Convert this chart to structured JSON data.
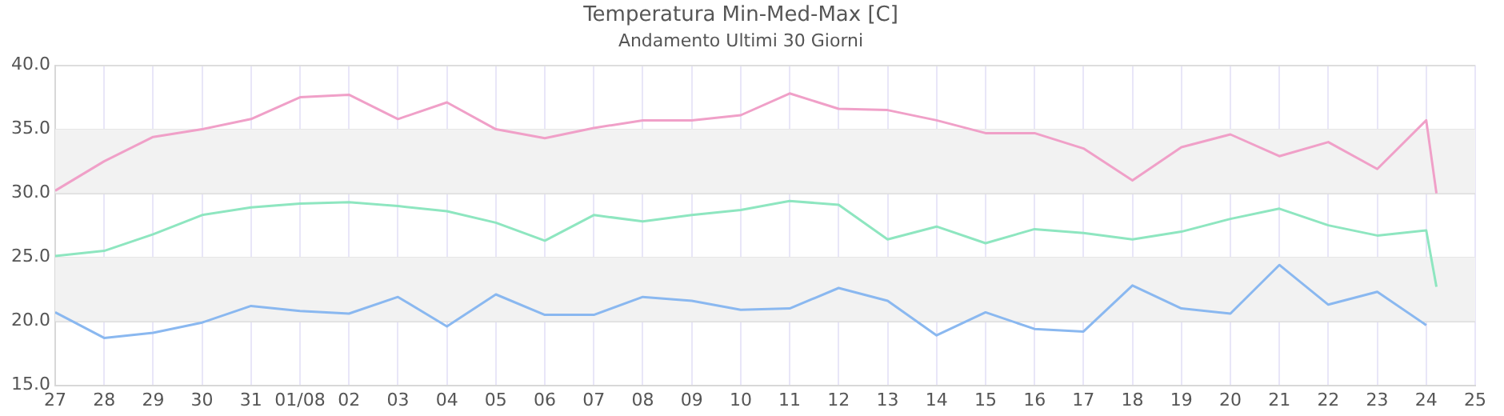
{
  "chart_data": {
    "type": "line",
    "title": "Temperatura Min-Med-Max [C]",
    "subtitle": "Andamento Ultimi 30 Giorni",
    "xlim": [
      "--07-27",
      "--08-25"
    ],
    "xticks": [
      {
        "value": "--07-27",
        "label": "27"
      },
      {
        "value": "--07-28",
        "label": "28"
      },
      {
        "value": "--07-29",
        "label": "29"
      },
      {
        "value": "--07-30",
        "label": "30"
      },
      {
        "value": "--07-31",
        "label": "31"
      },
      {
        "value": "--08-01",
        "label": "01/08"
      },
      {
        "value": "--08-02",
        "label": "02"
      },
      {
        "value": "--08-03",
        "label": "03"
      },
      {
        "value": "--08-04",
        "label": "04"
      },
      {
        "value": "--08-05",
        "label": "05"
      },
      {
        "value": "--08-06",
        "label": "06"
      },
      {
        "value": "--08-07",
        "label": "07"
      },
      {
        "value": "--08-08",
        "label": "08"
      },
      {
        "value": "--08-09",
        "label": "09"
      },
      {
        "value": "--08-10",
        "label": "10"
      },
      {
        "value": "--08-11",
        "label": "11"
      },
      {
        "value": "--08-12",
        "label": "12"
      },
      {
        "value": "--08-13",
        "label": "13"
      },
      {
        "value": "--08-14",
        "label": "14"
      },
      {
        "value": "--08-15",
        "label": "15"
      },
      {
        "value": "--08-16",
        "label": "16"
      },
      {
        "value": "--08-17",
        "label": "17"
      },
      {
        "value": "--08-18",
        "label": "18"
      },
      {
        "value": "--08-19",
        "label": "19"
      },
      {
        "value": "--08-20",
        "label": "20"
      },
      {
        "value": "--08-21",
        "label": "21"
      },
      {
        "value": "--08-22",
        "label": "22"
      },
      {
        "value": "--08-23",
        "label": "23"
      },
      {
        "value": "--08-24",
        "label": "24"
      },
      {
        "value": "--08-25",
        "label": "25"
      }
    ],
    "ylim": [
      15,
      40
    ],
    "yticks": [
      {
        "value": 15,
        "label": "15.0"
      },
      {
        "value": 20,
        "label": "20.0"
      },
      {
        "value": 25,
        "label": "25.0"
      },
      {
        "value": 30,
        "label": "30.0"
      },
      {
        "value": 35,
        "label": "35.0"
      },
      {
        "value": 40,
        "label": "40.0"
      }
    ],
    "grid": true,
    "legend": false,
    "marker": "none",
    "line_style": "solid",
    "bands": [
      {
        "axis": "y",
        "from": 30,
        "to": 35,
        "color": "#f2f2f2"
      },
      {
        "axis": "y",
        "from": 20,
        "to": 25,
        "color": "#f2f2f2"
      }
    ],
    "x": [
      "--07-27",
      "--07-28",
      "--07-29",
      "--07-30",
      "--07-31",
      "--08-01",
      "--08-02",
      "--08-03",
      "--08-04",
      "--08-05",
      "--08-06",
      "--08-07",
      "--08-08",
      "--08-09",
      "--08-10",
      "--08-11",
      "--08-12",
      "--08-13",
      "--08-14",
      "--08-15",
      "--08-16",
      "--08-17",
      "--08-18",
      "--08-19",
      "--08-20",
      "--08-21",
      "--08-22",
      "--08-23",
      "--08-24",
      "--08-24T05:00"
    ],
    "series": [
      {
        "color": "#f0a0c8",
        "values": [
          30.2,
          32.5,
          34.4,
          35.0,
          35.8,
          37.5,
          37.7,
          35.8,
          37.1,
          35.0,
          34.3,
          35.1,
          35.7,
          35.7,
          36.1,
          37.8,
          36.6,
          36.5,
          35.7,
          34.7,
          34.7,
          33.5,
          31.0,
          33.6,
          34.6,
          32.9,
          34.0,
          31.9,
          35.7,
          30.0
        ]
      },
      {
        "color": "#8ee6c0",
        "values": [
          25.1,
          25.5,
          26.8,
          28.3,
          28.9,
          29.2,
          29.3,
          29.0,
          28.6,
          27.7,
          26.3,
          28.3,
          27.8,
          28.3,
          28.7,
          29.4,
          29.1,
          26.4,
          27.4,
          26.1,
          27.2,
          26.9,
          26.4,
          27.0,
          28.0,
          28.8,
          27.5,
          26.7,
          27.1,
          22.7
        ]
      },
      {
        "color": "#8ab8f0",
        "values": [
          20.7,
          18.7,
          19.1,
          19.9,
          21.2,
          20.8,
          20.6,
          21.9,
          19.6,
          22.1,
          20.5,
          20.5,
          21.9,
          21.6,
          20.9,
          21.0,
          22.6,
          21.6,
          18.9,
          20.7,
          19.4,
          19.2,
          22.8,
          21.0,
          20.6,
          24.4,
          21.3,
          22.3,
          19.7,
          null
        ]
      }
    ]
  }
}
